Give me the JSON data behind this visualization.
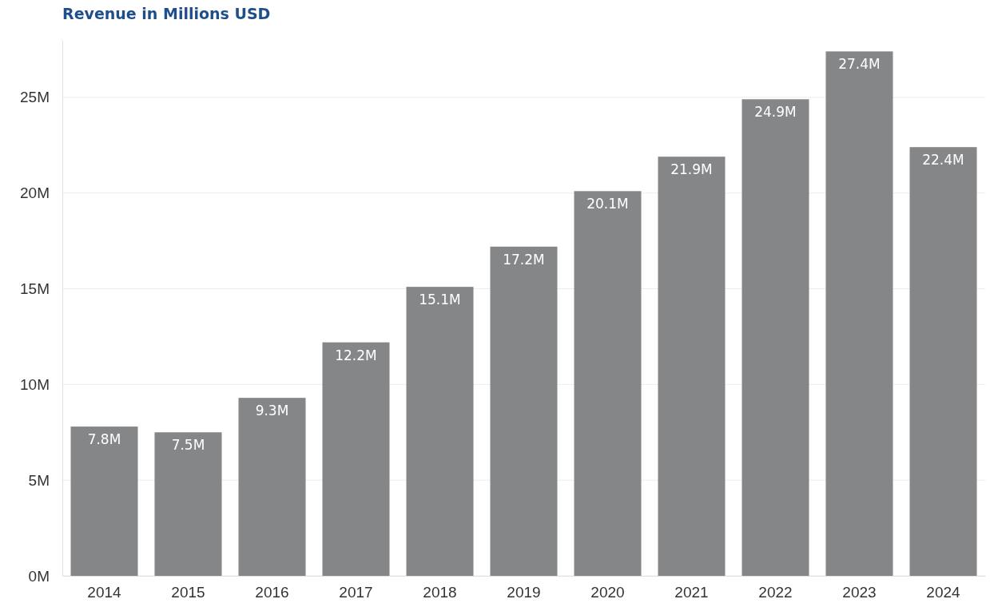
{
  "chart_data": {
    "type": "bar",
    "title": "Revenue in Millions USD",
    "categories": [
      "2014",
      "2015",
      "2016",
      "2017",
      "2018",
      "2019",
      "2020",
      "2021",
      "2022",
      "2023",
      "2024"
    ],
    "values": [
      7.8,
      7.5,
      9.3,
      12.2,
      15.1,
      17.2,
      20.1,
      21.9,
      24.9,
      27.4,
      22.4
    ],
    "value_labels": [
      "7.8M",
      "7.5M",
      "9.3M",
      "12.2M",
      "15.1M",
      "17.2M",
      "20.1M",
      "21.9M",
      "24.9M",
      "27.4M",
      "22.4M"
    ],
    "color": "#858688",
    "ylim": [
      0,
      28
    ],
    "yticks": [
      {
        "value": 0,
        "label": "0M"
      },
      {
        "value": 5,
        "label": "5M"
      },
      {
        "value": 10,
        "label": "10M"
      },
      {
        "value": 15,
        "label": "15M"
      },
      {
        "value": 20,
        "label": "20M"
      },
      {
        "value": 25,
        "label": "25M"
      }
    ],
    "grid": "y"
  }
}
